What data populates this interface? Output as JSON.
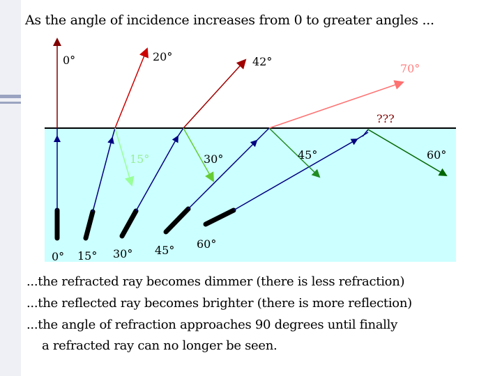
{
  "title": "As the angle of incidence increases from 0 to greater angles ...",
  "captions": [
    "...the refracted ray becomes dimmer (there is less refraction)",
    "...the reflected ray becomes brighter (there is more reflection)",
    "...the angle of refraction approaches 90 degrees until finally",
    "a refracted ray can no longer be seen."
  ],
  "colors": {
    "water": "#ccffff",
    "surface": "#000000",
    "incident": "#000080",
    "refracted_0": "#800000",
    "refracted_20": "#cc0000",
    "refracted_42": "#a00000",
    "refracted_70": "#ff7070",
    "reflected_15": "#99ff99",
    "reflected_30": "#66cc33",
    "reflected_45": "#228b22",
    "reflected_60": "#006600",
    "unknown_label": "#800000"
  },
  "incidence_labels": [
    "0°",
    "15°",
    "30°",
    "45°",
    "60°"
  ],
  "refraction_labels": [
    "0°",
    "20°",
    "42°",
    "70°"
  ],
  "reflection_labels": [
    "15°",
    "30°",
    "45°",
    "60°"
  ],
  "unknown_label": "???"
}
